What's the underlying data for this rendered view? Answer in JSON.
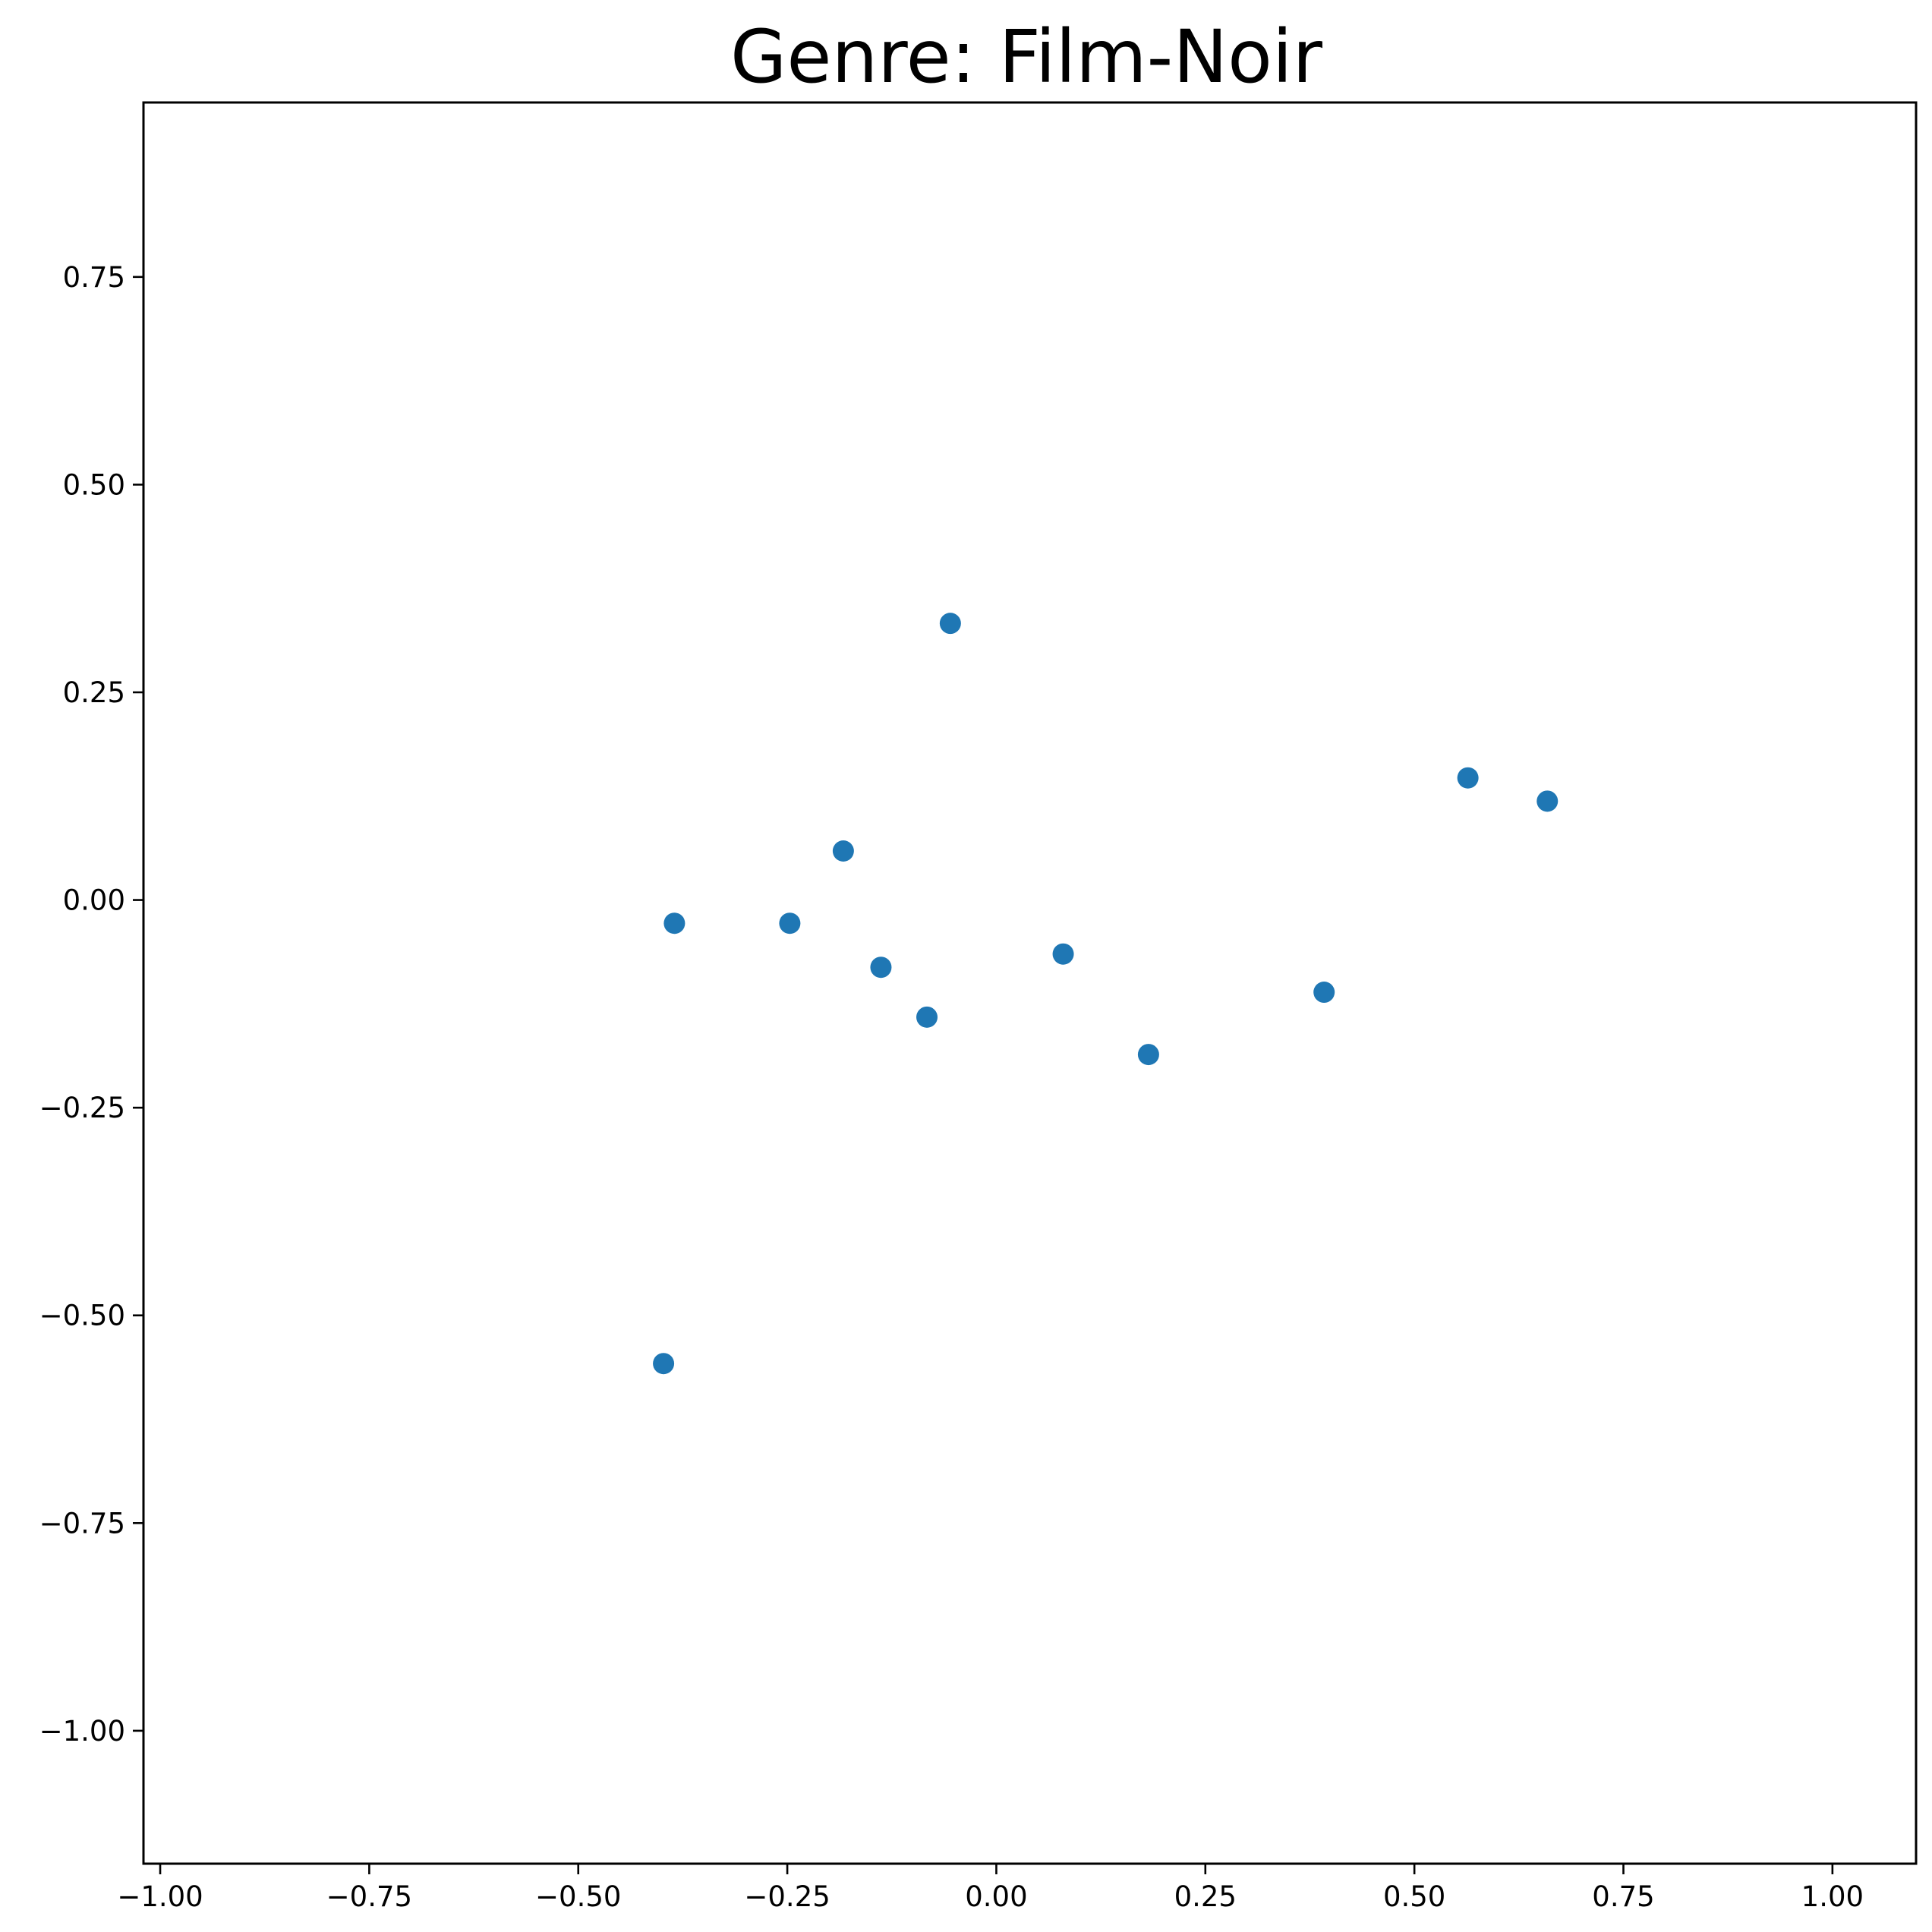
{
  "chart_data": {
    "type": "scatter",
    "title": "Genre: Film-Noir",
    "xlabel": "",
    "ylabel": "",
    "xlim": [
      -1.02,
      1.1
    ],
    "ylim": [
      -1.16,
      0.96
    ],
    "x_ticks": [
      -1.0,
      -0.75,
      -0.5,
      -0.25,
      0.0,
      0.25,
      0.5,
      0.75,
      1.0
    ],
    "x_tick_labels": [
      "−1.00",
      "−0.75",
      "−0.50",
      "−0.25",
      "0.00",
      "0.25",
      "0.50",
      "0.75",
      "1.00"
    ],
    "y_ticks": [
      0.75,
      0.5,
      0.25,
      0.0,
      -0.25,
      -0.5,
      -0.75,
      -1.0
    ],
    "y_tick_labels": [
      "0.75",
      "0.50",
      "0.25",
      "0.00",
      "−0.25",
      "−0.50",
      "−0.75",
      "−1.00"
    ],
    "grid": false,
    "marker_color": "#1f77b4",
    "points": [
      {
        "x": -0.055,
        "y": 0.333
      },
      {
        "x": 0.564,
        "y": 0.147
      },
      {
        "x": 0.659,
        "y": 0.119
      },
      {
        "x": -0.183,
        "y": 0.059
      },
      {
        "x": -0.385,
        "y": -0.028
      },
      {
        "x": -0.247,
        "y": -0.028
      },
      {
        "x": 0.08,
        "y": -0.065
      },
      {
        "x": -0.138,
        "y": -0.081
      },
      {
        "x": 0.392,
        "y": -0.111
      },
      {
        "x": -0.083,
        "y": -0.141
      },
      {
        "x": 0.182,
        "y": -0.186
      },
      {
        "x": -0.398,
        "y": -0.558
      }
    ]
  }
}
